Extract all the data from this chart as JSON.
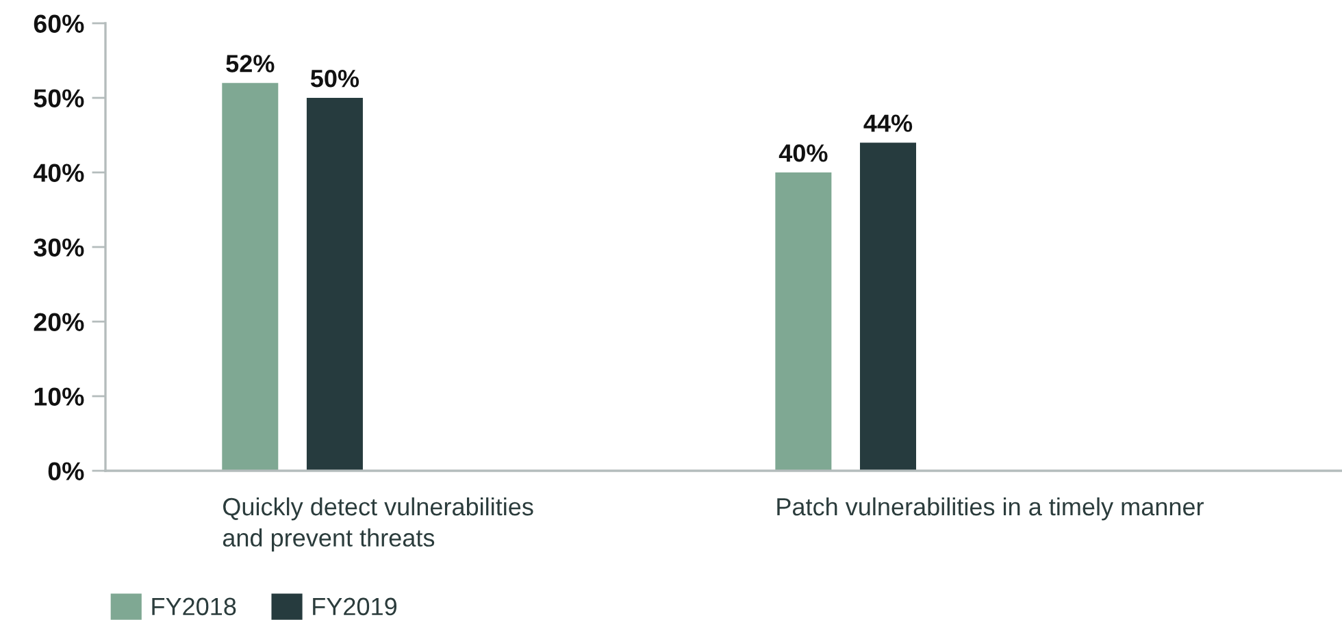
{
  "chart_data": {
    "type": "bar",
    "categories": [
      "Quickly detect vulnerabilities\nand prevent threats",
      "Patch vulnerabilities in a timely manner"
    ],
    "series": [
      {
        "name": "FY2018",
        "color": "#7fa893",
        "values": [
          52,
          40
        ],
        "value_labels": [
          "52%",
          "40%"
        ]
      },
      {
        "name": "FY2019",
        "color": "#263b3e",
        "values": [
          50,
          44
        ],
        "value_labels": [
          "50%",
          "44%"
        ]
      }
    ],
    "ylim": [
      0,
      60
    ],
    "yticks": [
      {
        "value": 0,
        "label": "0%"
      },
      {
        "value": 10,
        "label": "10%"
      },
      {
        "value": 20,
        "label": "20%"
      },
      {
        "value": 30,
        "label": "30%"
      },
      {
        "value": 40,
        "label": "40%"
      },
      {
        "value": 50,
        "label": "50%"
      },
      {
        "value": 60,
        "label": "60%"
      }
    ],
    "legend": "bottom left"
  }
}
